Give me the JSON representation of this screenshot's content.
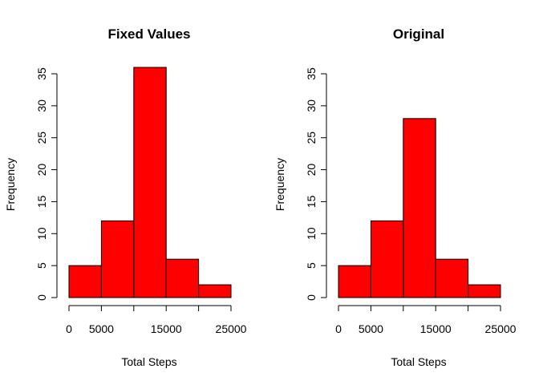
{
  "chart_data": [
    {
      "type": "bar",
      "title": "Fixed Values",
      "xlabel": "Total Steps",
      "ylabel": "Frequency",
      "bins": [
        [
          0,
          5000
        ],
        [
          5000,
          10000
        ],
        [
          10000,
          15000
        ],
        [
          15000,
          20000
        ],
        [
          20000,
          25000
        ]
      ],
      "values": [
        5,
        12,
        36,
        6,
        2
      ],
      "xlim": [
        0,
        25000
      ],
      "ylim": [
        0,
        35
      ],
      "x_ticks": [
        "0",
        "5000",
        "15000",
        "25000"
      ],
      "y_ticks": [
        "0",
        "5",
        "10",
        "15",
        "20",
        "25",
        "30",
        "35"
      ],
      "bar_color": "#ff0000",
      "grid": false
    },
    {
      "type": "bar",
      "title": "Original",
      "xlabel": "Total Steps",
      "ylabel": "Frequency",
      "bins": [
        [
          0,
          5000
        ],
        [
          5000,
          10000
        ],
        [
          10000,
          15000
        ],
        [
          15000,
          20000
        ],
        [
          20000,
          25000
        ]
      ],
      "values": [
        5,
        12,
        28,
        6,
        2
      ],
      "xlim": [
        0,
        25000
      ],
      "ylim": [
        0,
        35
      ],
      "x_ticks": [
        "0",
        "5000",
        "15000",
        "25000"
      ],
      "y_ticks": [
        "0",
        "5",
        "10",
        "15",
        "20",
        "25",
        "30",
        "35"
      ],
      "bar_color": "#ff0000",
      "grid": false
    }
  ]
}
